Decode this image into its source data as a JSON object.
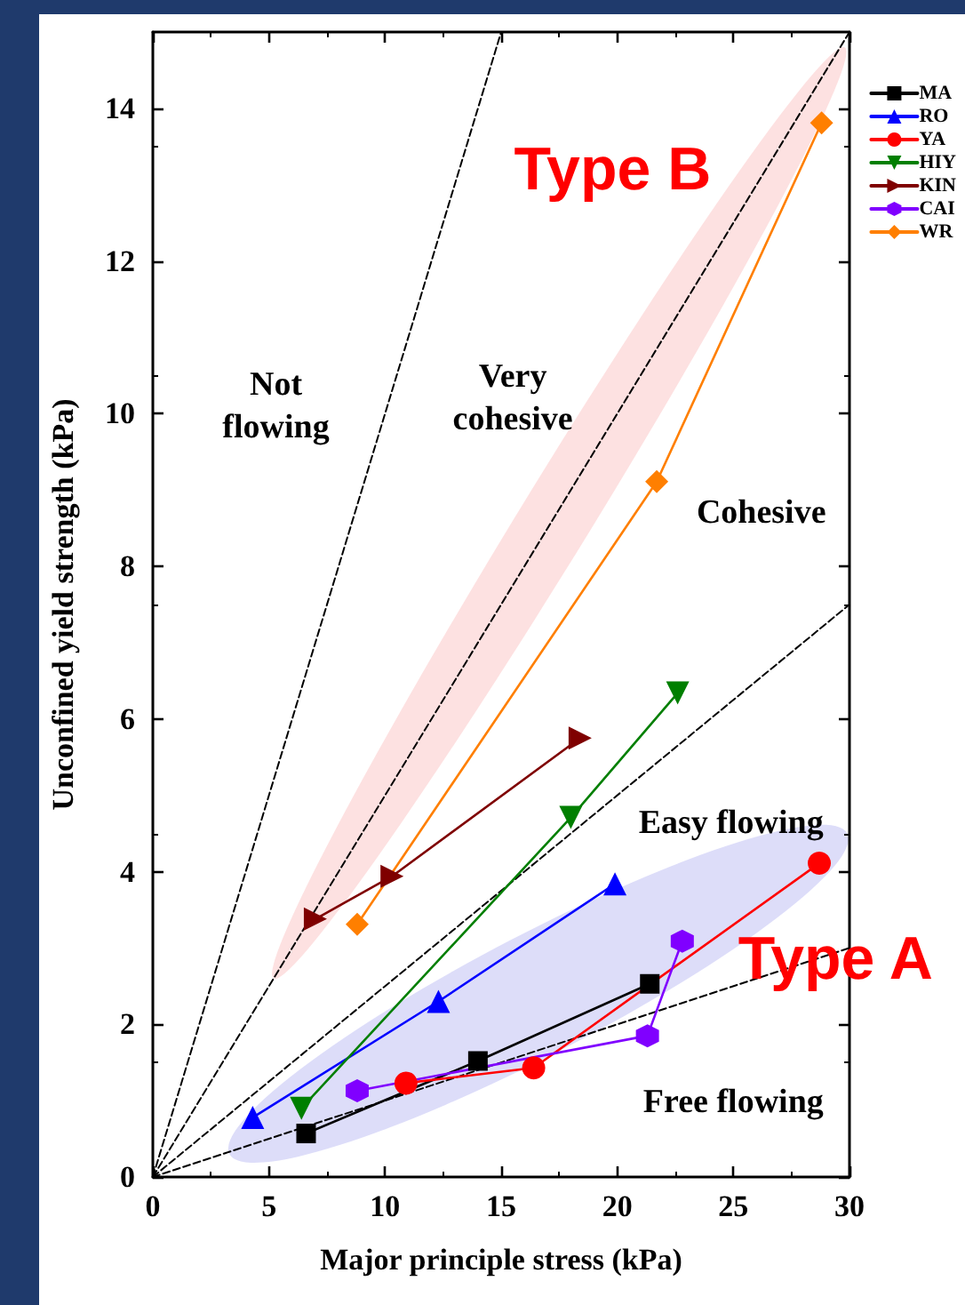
{
  "chart_data": {
    "type": "line",
    "xlabel": "Major principle stress (kPa)",
    "ylabel": "Unconfined yield strength (kPa)",
    "xlim": [
      0,
      30
    ],
    "xticks": [
      0,
      5,
      10,
      15,
      20,
      25,
      30
    ],
    "ylim": [
      0,
      15
    ],
    "yticks": [
      0,
      2,
      4,
      6,
      8,
      10,
      12,
      14
    ],
    "legend": "top right",
    "grid": false,
    "line_style": "solid",
    "series": [
      {
        "name": "MA",
        "color": "#000000",
        "marker": "square",
        "x": [
          6.6,
          14.0,
          21.4
        ],
        "values": [
          0.57,
          1.52,
          2.53
        ]
      },
      {
        "name": "RO",
        "color": "#0000ff",
        "marker": "triangle",
        "x": [
          4.3,
          12.3,
          19.9
        ],
        "values": [
          0.78,
          2.3,
          3.84
        ]
      },
      {
        "name": "YA",
        "color": "#ff0000",
        "marker": "circle",
        "x": [
          10.9,
          16.4,
          28.7
        ],
        "values": [
          1.23,
          1.43,
          4.11
        ]
      },
      {
        "name": "HIY",
        "color": "#007f00",
        "marker": "triangle",
        "x": [
          6.4,
          18.0,
          22.6
        ],
        "values": [
          0.9,
          4.71,
          6.34
        ]
      },
      {
        "name": "KIN",
        "color": "#7f0000",
        "marker": "triangle",
        "x": [
          7.0,
          10.3,
          18.4
        ],
        "values": [
          3.38,
          3.94,
          5.75
        ]
      },
      {
        "name": "CAI",
        "color": "#8000ff",
        "marker": "circle",
        "x": [
          8.8,
          21.3,
          22.8
        ],
        "values": [
          1.13,
          1.85,
          3.09
        ]
      },
      {
        "name": "WR",
        "color": "#ff7f00",
        "marker": "diamond",
        "x": [
          8.8,
          21.7,
          28.8
        ],
        "values": [
          3.31,
          9.11,
          13.81
        ]
      },
      {
        "color": "#000000",
        "marker": "none",
        "line_style": "dashed",
        "x": [
          0,
          15
        ],
        "values": [
          0,
          15
        ]
      },
      {
        "color": "#000000",
        "marker": "none",
        "line_style": "dashed",
        "x": [
          0,
          30
        ],
        "values": [
          0,
          15
        ]
      },
      {
        "color": "#000000",
        "marker": "none",
        "line_style": "dashed",
        "x": [
          0,
          30
        ],
        "values": [
          0,
          7.5
        ]
      },
      {
        "color": "#000000",
        "marker": "none",
        "line_style": "dashed",
        "x": [
          0,
          30
        ],
        "values": [
          0,
          3
        ]
      }
    ],
    "annotations": [
      "Type B",
      "Type A",
      "Not\nflowing",
      "Very\ncohesive",
      "Cohesive",
      "Easy flowing",
      "Free flowing"
    ]
  }
}
